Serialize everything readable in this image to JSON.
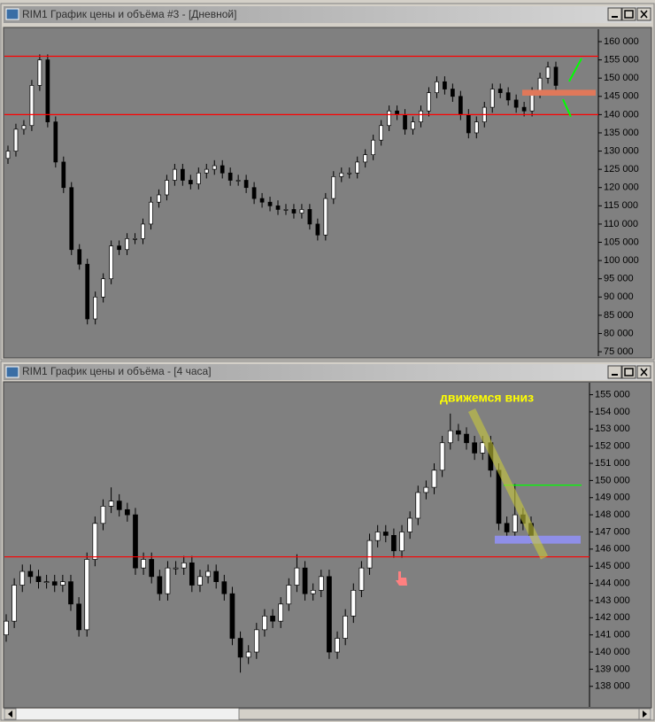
{
  "windows": [
    {
      "title": "RIM1 График цены и объёма #3 - [Дневной]"
    },
    {
      "title": "RIM1 График цены и объёма - [4 часа]"
    }
  ],
  "chart_data": [
    {
      "type": "candlestick",
      "ylim": [
        73800,
        163400
      ],
      "yticks": [
        {
          "value": 75000,
          "label": "75 000"
        },
        {
          "value": 80000,
          "label": "80 000"
        },
        {
          "value": 85000,
          "label": "85 000"
        },
        {
          "value": 90000,
          "label": "90 000"
        },
        {
          "value": 95000,
          "label": "95 000"
        },
        {
          "value": 100000,
          "label": "100 000"
        },
        {
          "value": 105000,
          "label": "105 000"
        },
        {
          "value": 110000,
          "label": "110 000"
        },
        {
          "value": 115000,
          "label": "115 000"
        },
        {
          "value": 120000,
          "label": "120 000"
        },
        {
          "value": 125000,
          "label": "125 000"
        },
        {
          "value": 130000,
          "label": "130 000"
        },
        {
          "value": 135000,
          "label": "135 000"
        },
        {
          "value": 140000,
          "label": "140 000"
        },
        {
          "value": 145000,
          "label": "145 000"
        },
        {
          "value": 150000,
          "label": "150 000"
        },
        {
          "value": 155000,
          "label": "155 000"
        },
        {
          "value": 160000,
          "label": "160 000"
        }
      ],
      "open": [
        128000,
        130000,
        136000,
        137000,
        148000,
        155000,
        138000,
        127000,
        120000,
        103000,
        99000,
        84000,
        90000,
        95000,
        104000,
        103000,
        106000,
        106000,
        110000,
        116000,
        118000,
        122000,
        125000,
        122000,
        121000,
        124000,
        125000,
        126000,
        124000,
        122000,
        122000,
        120000,
        117000,
        116000,
        115000,
        114000,
        114000,
        113000,
        114000,
        110000,
        107000,
        117000,
        123000,
        124000,
        124000,
        127000,
        129000,
        133000,
        137000,
        141000,
        140000,
        136000,
        138000,
        141000,
        146000,
        149000,
        147000,
        145000,
        140000,
        135000,
        138000,
        142000,
        147000,
        146000,
        144000,
        142000,
        141000,
        146000,
        150000,
        153000
      ],
      "high": [
        131500,
        137500,
        138500,
        149500,
        156500,
        156500,
        139500,
        128500,
        121500,
        104500,
        100500,
        91500,
        96500,
        105500,
        105500,
        107500,
        107500,
        111500,
        117500,
        119500,
        123500,
        126500,
        126500,
        123500,
        125500,
        126500,
        127500,
        127500,
        125500,
        123500,
        123500,
        121500,
        118500,
        117500,
        116500,
        115500,
        115500,
        115500,
        115500,
        111500,
        118500,
        124500,
        125500,
        125500,
        128500,
        130500,
        134500,
        138500,
        142500,
        142500,
        141500,
        139500,
        142500,
        147500,
        150500,
        150500,
        148500,
        146500,
        141500,
        139500,
        143500,
        148500,
        148500,
        147500,
        145500,
        143500,
        147500,
        151500,
        154500,
        154500
      ],
      "low": [
        126500,
        128500,
        134500,
        135500,
        146500,
        136500,
        125500,
        118500,
        101500,
        97500,
        82500,
        82500,
        88500,
        93500,
        101500,
        101500,
        104500,
        104500,
        108500,
        114500,
        116500,
        120500,
        120500,
        119500,
        119500,
        122500,
        123500,
        122500,
        120500,
        120500,
        118500,
        115500,
        114500,
        113500,
        112500,
        112500,
        111500,
        111500,
        108500,
        105500,
        105500,
        115500,
        121500,
        122500,
        122500,
        125500,
        127500,
        131500,
        135500,
        138500,
        134500,
        134500,
        136500,
        139500,
        144500,
        145500,
        143500,
        138500,
        133500,
        133500,
        136500,
        140500,
        144500,
        142500,
        140500,
        139500,
        139500,
        144500,
        148500,
        146500
      ],
      "close": [
        130000,
        136000,
        137000,
        148000,
        155000,
        138000,
        127000,
        120000,
        103000,
        99000,
        84000,
        90000,
        95000,
        104000,
        103000,
        106000,
        106000,
        110000,
        116000,
        118000,
        122000,
        125000,
        122000,
        121000,
        124000,
        125000,
        126000,
        124000,
        122000,
        122000,
        120000,
        117000,
        116000,
        115000,
        114000,
        114000,
        113000,
        114000,
        110000,
        107000,
        117000,
        123000,
        124000,
        124000,
        127000,
        129000,
        133000,
        137000,
        141000,
        140000,
        136000,
        138000,
        141000,
        146000,
        149000,
        147000,
        145000,
        140000,
        135000,
        138000,
        142000,
        147000,
        146000,
        144000,
        142000,
        141000,
        146000,
        150000,
        153000,
        148000
      ],
      "up_color": "#ffffff",
      "down_color": "#000000",
      "wick_color": "#000000",
      "hlines": [
        {
          "value": 156000,
          "color": "#ff0000"
        },
        {
          "value": 140000,
          "color": "#ff0000"
        }
      ],
      "bands": [
        {
          "from": 145200,
          "to": 146800,
          "color": "#e0785a"
        }
      ],
      "trendlines": [
        {
          "from": 149100,
          "to": 155400,
          "color": "#00ff00"
        },
        {
          "from": 144200,
          "to": 139400,
          "color": "#00ff00"
        }
      ]
    },
    {
      "type": "candlestick",
      "ylim": [
        136800,
        155700
      ],
      "yticks": [
        {
          "value": 138000,
          "label": "138 000"
        },
        {
          "value": 139000,
          "label": "139 000"
        },
        {
          "value": 140000,
          "label": "140 000"
        },
        {
          "value": 141000,
          "label": "141 000"
        },
        {
          "value": 142000,
          "label": "142 000"
        },
        {
          "value": 143000,
          "label": "143 000"
        },
        {
          "value": 144000,
          "label": "144 000"
        },
        {
          "value": 145000,
          "label": "145 000"
        },
        {
          "value": 146000,
          "label": "146 000"
        },
        {
          "value": 147000,
          "label": "147 000"
        },
        {
          "value": 148000,
          "label": "148 000"
        },
        {
          "value": 149000,
          "label": "149 000"
        },
        {
          "value": 150000,
          "label": "150 000"
        },
        {
          "value": 151000,
          "label": "151 000"
        },
        {
          "value": 152000,
          "label": "152 000"
        },
        {
          "value": 153000,
          "label": "153 000"
        },
        {
          "value": 154000,
          "label": "154 000"
        },
        {
          "value": 155000,
          "label": "155 000"
        }
      ],
      "open": [
        141000,
        141800,
        143900,
        144700,
        144400,
        144100,
        144100,
        143900,
        144100,
        142800,
        141300,
        145400,
        147500,
        148500,
        148800,
        148300,
        148000,
        144900,
        145400,
        144400,
        143400,
        144900,
        144900,
        145200,
        143900,
        144400,
        144700,
        144100,
        143400,
        140800,
        139700,
        140000,
        141300,
        142100,
        141800,
        142800,
        143900,
        144900,
        143400,
        143600,
        144400,
        140000,
        140800,
        142100,
        143600,
        144900,
        146500,
        147000,
        146800,
        145900,
        147000,
        147800,
        149300,
        149600,
        150600,
        152200,
        152900,
        152700,
        152200,
        151600,
        152200,
        150600,
        147500,
        147000,
        148000,
        147500
      ],
      "high": [
        142200,
        144300,
        145100,
        145100,
        144800,
        144500,
        144500,
        144500,
        144500,
        143200,
        145800,
        147900,
        148900,
        149600,
        149200,
        148700,
        148400,
        145800,
        145800,
        144800,
        145300,
        145300,
        145600,
        145600,
        144800,
        145100,
        145100,
        144500,
        143800,
        141200,
        140400,
        141700,
        142500,
        142500,
        143200,
        144300,
        145700,
        145300,
        144000,
        144800,
        144800,
        141200,
        142500,
        144000,
        145300,
        146900,
        147400,
        147400,
        147200,
        147400,
        148200,
        149700,
        150000,
        151000,
        152600,
        153900,
        153300,
        153100,
        152600,
        152600,
        152600,
        151000,
        147900,
        149800,
        148400,
        147900
      ],
      "low": [
        140600,
        141400,
        143500,
        144000,
        143700,
        143700,
        143500,
        143500,
        142400,
        140900,
        140900,
        145000,
        147100,
        148100,
        147900,
        147600,
        144500,
        144500,
        144000,
        143000,
        143000,
        144500,
        144500,
        143500,
        143500,
        144000,
        143700,
        143000,
        140400,
        138800,
        139300,
        139600,
        140900,
        141400,
        141400,
        142400,
        143500,
        143000,
        143000,
        143200,
        139600,
        139600,
        140400,
        141700,
        143200,
        144500,
        146100,
        146400,
        145500,
        145500,
        146600,
        147400,
        148900,
        149200,
        150200,
        151800,
        152300,
        151800,
        151200,
        151200,
        150200,
        147100,
        146600,
        146600,
        147100,
        146300
      ],
      "close": [
        141800,
        143900,
        144700,
        144400,
        144100,
        144100,
        143900,
        144100,
        142800,
        141300,
        145400,
        147500,
        148500,
        148800,
        148300,
        148000,
        144900,
        145400,
        144400,
        143400,
        144900,
        144900,
        145200,
        143900,
        144400,
        144700,
        144100,
        143400,
        140800,
        139700,
        140000,
        141300,
        142100,
        141800,
        142800,
        143900,
        144900,
        143400,
        143600,
        144400,
        140000,
        140800,
        142100,
        143600,
        144900,
        146500,
        147000,
        146800,
        145900,
        147000,
        147800,
        149300,
        149600,
        150600,
        152200,
        152900,
        152700,
        152200,
        151600,
        152200,
        150600,
        147500,
        147000,
        148000,
        147500,
        146700
      ],
      "up_color": "#ffffff",
      "down_color": "#000000",
      "wick_color": "#000000",
      "hlines": [
        {
          "value": 145550,
          "color": "#ff0000"
        },
        {
          "value": 149730,
          "color": "#00ff00"
        }
      ],
      "bands": [
        {
          "from": 146320,
          "to": 146780,
          "color": "#8f8fe8"
        }
      ],
      "trendlines": [
        {
          "from": 154100,
          "to": 145500,
          "color": "#c8c83c"
        }
      ],
      "annotations": [
        {
          "text": "движемся вниз",
          "color": "#ffff00"
        }
      ]
    }
  ]
}
